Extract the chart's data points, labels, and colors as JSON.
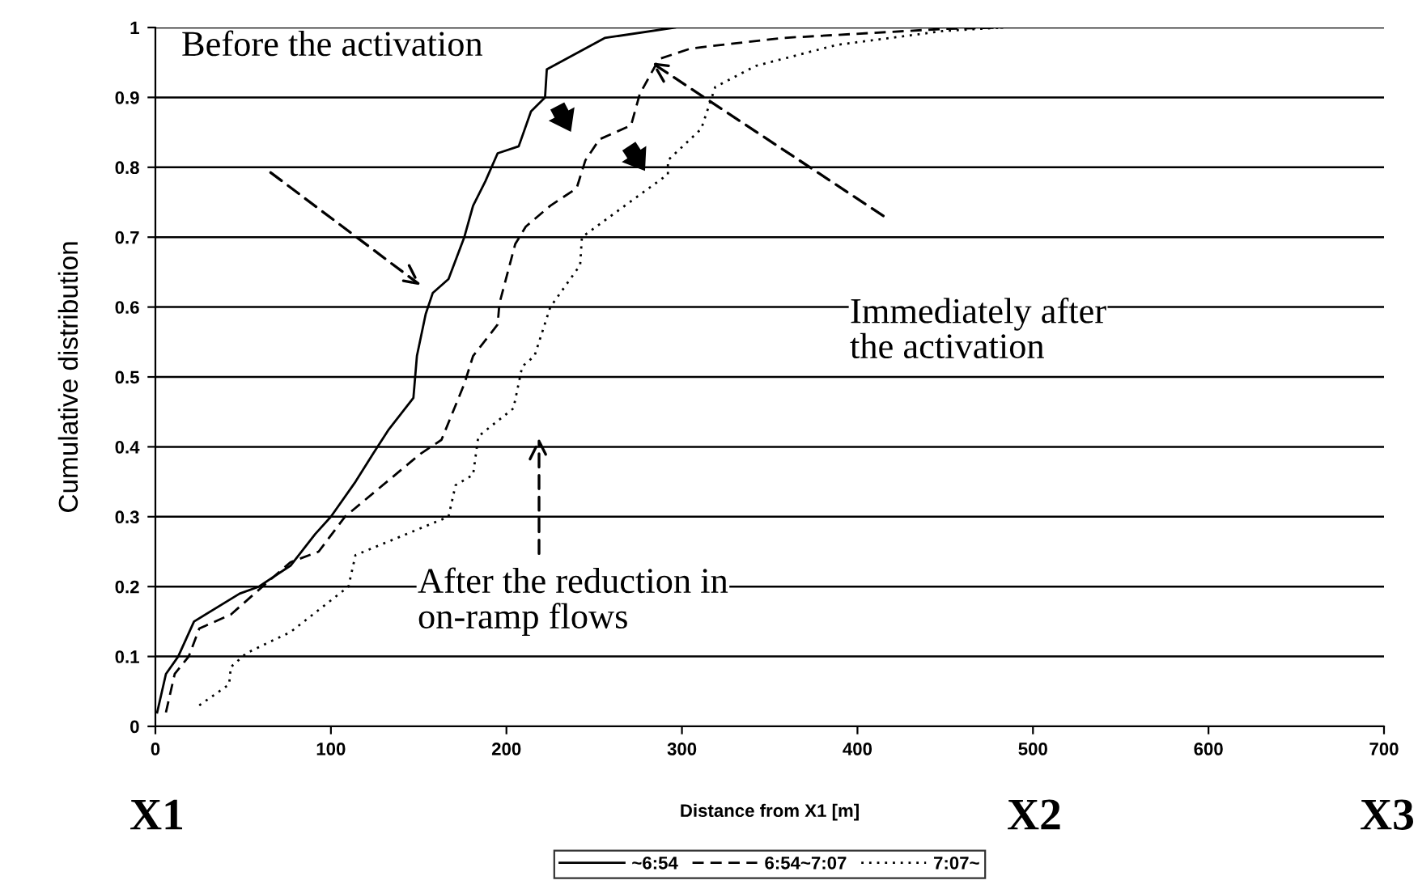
{
  "chart_data": {
    "type": "line",
    "xlabel": "Distance from X1 [m]",
    "ylabel": "Cumulative distribution",
    "xlim": [
      0,
      700
    ],
    "xticks": [
      0,
      100,
      200,
      300,
      400,
      500,
      600,
      700
    ],
    "ylim": [
      0,
      1
    ],
    "yticks": [
      0,
      0.1,
      0.2,
      0.3,
      0.4,
      0.5,
      0.6,
      0.7,
      0.8,
      0.9,
      1
    ],
    "grid": "y",
    "legend": "bottom",
    "marker": "none",
    "series": [
      {
        "name": "~6:54",
        "color": "#000000",
        "line_style": "solid",
        "x": [
          1,
          6,
          13,
          22,
          48,
          59,
          77,
          91,
          100,
          114,
          124,
          133,
          147,
          149,
          154,
          158,
          167,
          176,
          181,
          188,
          195,
          207,
          214,
          222,
          223,
          256,
          296
        ],
        "values": [
          0.02,
          0.075,
          0.1,
          0.15,
          0.19,
          0.2,
          0.23,
          0.275,
          0.3,
          0.35,
          0.39,
          0.425,
          0.47,
          0.53,
          0.59,
          0.62,
          0.64,
          0.7,
          0.745,
          0.78,
          0.82,
          0.83,
          0.88,
          0.9,
          0.94,
          0.985,
          1.0
        ]
      },
      {
        "name": "6:54~7:07",
        "color": "#000000",
        "line_style": "dashed",
        "x": [
          6,
          11,
          19,
          25,
          43,
          61,
          77,
          93,
          108,
          151,
          163,
          176,
          181,
          195,
          196,
          205,
          211,
          225,
          240,
          245,
          253,
          271,
          276,
          287,
          305,
          357,
          449,
          483
        ],
        "values": [
          0.02,
          0.075,
          0.1,
          0.14,
          0.16,
          0.2,
          0.235,
          0.25,
          0.3,
          0.39,
          0.41,
          0.49,
          0.53,
          0.575,
          0.605,
          0.69,
          0.715,
          0.745,
          0.77,
          0.81,
          0.84,
          0.86,
          0.905,
          0.955,
          0.97,
          0.985,
          0.998,
          1.0
        ]
      },
      {
        "name": "7:07~",
        "color": "#000000",
        "line_style": "dotted",
        "x": [
          25,
          42,
          43,
          52,
          77,
          110,
          114,
          167,
          171,
          181,
          184,
          204,
          209,
          216,
          225,
          242,
          243,
          292,
          292,
          311,
          319,
          342,
          388,
          449,
          483
        ],
        "values": [
          0.03,
          0.06,
          0.085,
          0.105,
          0.135,
          0.2,
          0.245,
          0.3,
          0.345,
          0.36,
          0.415,
          0.455,
          0.515,
          0.53,
          0.6,
          0.66,
          0.7,
          0.79,
          0.81,
          0.855,
          0.915,
          0.945,
          0.975,
          0.995,
          1.0
        ]
      }
    ],
    "annotations": [
      "Before the activation",
      "Immediately after\nthe activation",
      "After the reduction in\non-ramp flows",
      "X1",
      "X2",
      "X3"
    ]
  }
}
